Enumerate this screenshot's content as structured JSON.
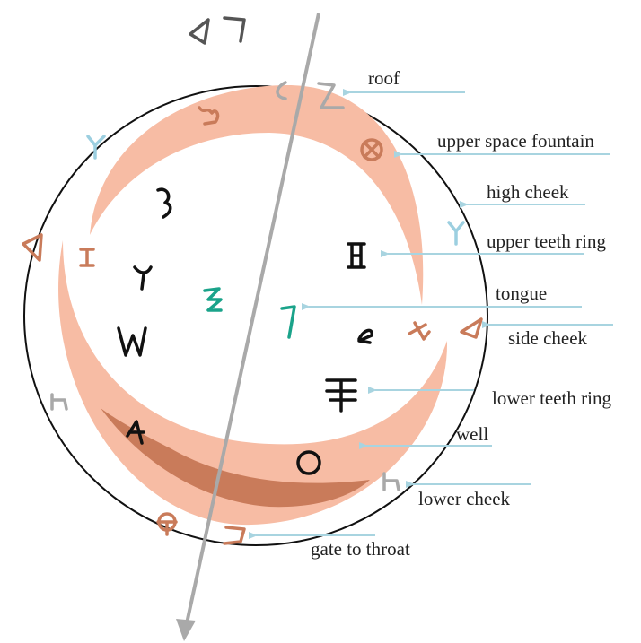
{
  "labels": [
    "roof",
    "upper space fountain",
    "high cheek",
    "upper teeth ring",
    "tongue",
    "side cheek",
    "lower teeth ring",
    "well",
    "lower cheek",
    "gate to throat"
  ]
}
